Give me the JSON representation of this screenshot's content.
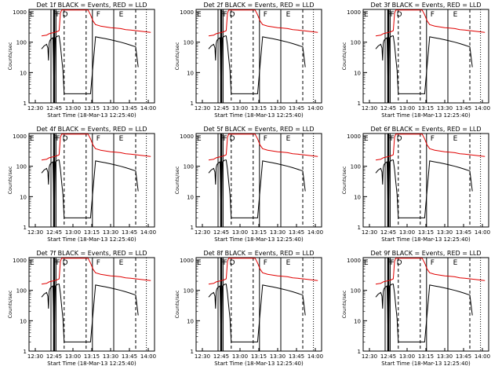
{
  "chart_data": {
    "type": "line",
    "scale": "log",
    "panel_titles": [
      "Det 1f BLACK = Events, RED = LLD",
      "Det 2f BLACK = Events, RED = LLD",
      "Det 3f BLACK = Events, RED = LLD",
      "Det 4f BLACK = Events, RED = LLD",
      "Det 5f BLACK = Events, RED = LLD",
      "Det 6f BLACK = Events, RED = LLD",
      "Det 7f BLACK = Events, RED = LLD",
      "Det 8f BLACK = Events, RED = LLD",
      "Det 9f BLACK = Events, RED = LLD"
    ],
    "xlabel": "Start Time (18-Mar-13 12:25:40)",
    "ylabel": "Counts/sec",
    "x_ticks": [
      "12:30",
      "12:45",
      "13:00",
      "13:15",
      "13:30",
      "13:45",
      "14:00"
    ],
    "y_ticks": [
      "1",
      "10",
      "100",
      "1000"
    ],
    "xlim_minutes": [
      -5,
      95
    ],
    "ylim": [
      1,
      1200
    ],
    "markers": {
      "letters": [
        "E",
        "F",
        "F",
        "D",
        "F",
        "E"
      ],
      "letter_minutes": [
        -5,
        14,
        16,
        21,
        48,
        66
      ],
      "solid_lines": [
        12.5,
        15,
        16.5,
        45.5,
        62.5
      ],
      "dashed_lines": [
        23,
        40.5,
        80
      ],
      "dotted_lines": [
        88.5
      ]
    },
    "series": [
      {
        "name": "BLACK = Events",
        "color": "#000000",
        "x": [
          5,
          7,
          9,
          10,
          10.5,
          11,
          11.5,
          12,
          13,
          14,
          15,
          16,
          17,
          18,
          19,
          20,
          21,
          22,
          23,
          24,
          28,
          32,
          36,
          40,
          44,
          48,
          52,
          56,
          60,
          64,
          68,
          72,
          76,
          80,
          82
        ],
        "y": [
          60,
          75,
          85,
          65,
          25,
          90,
          110,
          120,
          130,
          140,
          2,
          140,
          150,
          160,
          160,
          80,
          30,
          12,
          2,
          2,
          2,
          2,
          2,
          2,
          2,
          150,
          140,
          130,
          120,
          110,
          100,
          90,
          80,
          70,
          15
        ]
      },
      {
        "name": "RED = LLD",
        "color": "#e00000",
        "x": [
          5,
          7,
          9,
          11,
          13,
          15,
          17,
          19,
          20,
          21,
          22,
          23,
          24,
          28,
          32,
          36,
          40,
          42,
          44,
          46,
          48,
          52,
          56,
          60,
          64,
          68,
          72,
          76,
          80,
          84,
          88,
          92
        ],
        "y": [
          160,
          165,
          170,
          190,
          200,
          210,
          220,
          240,
          900,
          1150,
          1150,
          1150,
          1150,
          1150,
          1150,
          1150,
          1150,
          1150,
          800,
          500,
          380,
          340,
          320,
          300,
          290,
          280,
          260,
          250,
          240,
          230,
          220,
          210
        ]
      }
    ]
  }
}
